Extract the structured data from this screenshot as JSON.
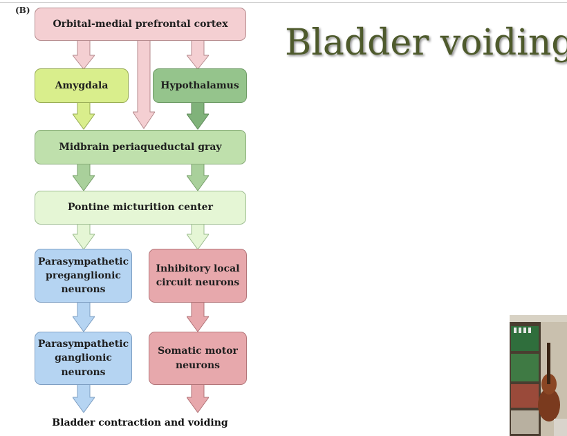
{
  "panel_label": "(B)",
  "slide_title": "Bladder voiding",
  "nodes": {
    "ompfc": "Orbital-medial prefrontal cortex",
    "amygdala": "Amygdala",
    "hypothalamus": "Hypothalamus",
    "pag": "Midbrain periaqueductal gray",
    "pmc": "Pontine micturition center",
    "para_pre": [
      "Parasympathetic",
      "preganglionic",
      "neurons"
    ],
    "inhib": [
      "Inhibitory local",
      "circuit neurons"
    ],
    "para_gang": [
      "Parasympathetic",
      "ganglionic",
      "neurons"
    ],
    "somatic": [
      "Somatic motor",
      "neurons"
    ]
  },
  "caption": "Bladder contraction and voiding",
  "colors": {
    "pink": "#f4cfd2",
    "lime": "#d9ee8c",
    "green": "#95c48c",
    "light_green": "#bfe0ac",
    "pale_green": "#e5f6d5",
    "blue": "#b5d4f2",
    "rose": "#e7a8ac",
    "title": "#4e5a2c"
  }
}
